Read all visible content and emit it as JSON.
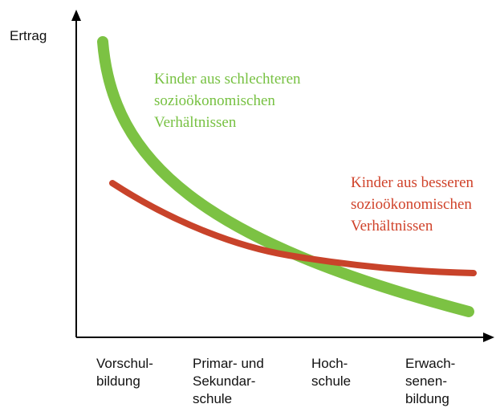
{
  "y_axis_label": "Ertrag",
  "curves": [
    {
      "label": [
        "Kinder aus schlechteren",
        "sozioökonomischen",
        "Verhältnissen"
      ]
    },
    {
      "label": [
        "Kinder aus besseren",
        "sozioökonomischen",
        "Verhältnissen"
      ]
    }
  ],
  "x_categories": [
    [
      "Vorschul-",
      "bildung"
    ],
    [
      "Primar- und",
      "Sekundar-",
      "schule"
    ],
    [
      "Hoch-",
      "schule"
    ],
    [
      "Erwach-",
      "senen-",
      "bildung"
    ]
  ]
}
